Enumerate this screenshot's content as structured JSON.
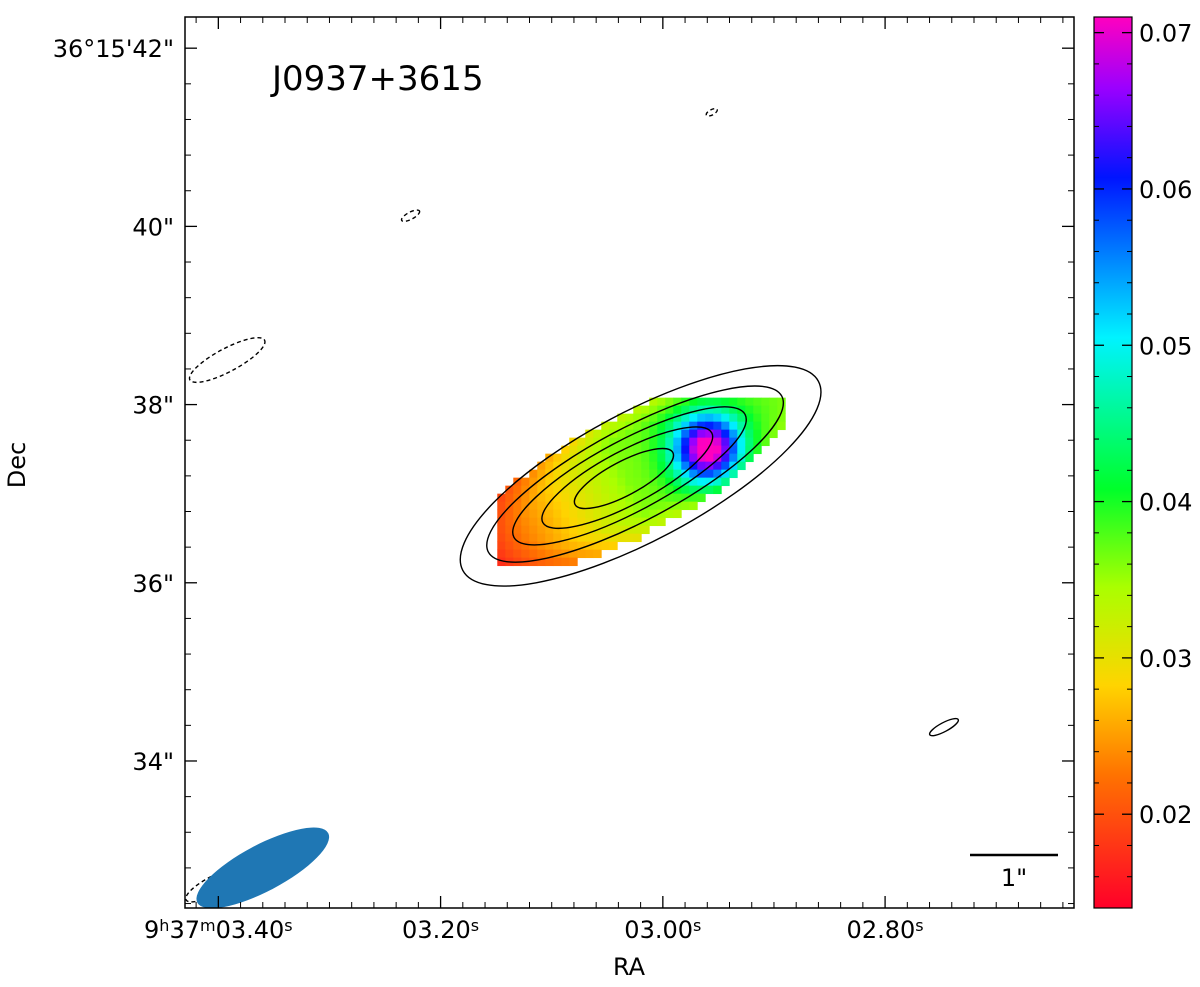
{
  "chart_data": {
    "type": "heatmap",
    "title": "J0937+3615",
    "xlabel": "RA",
    "ylabel": "Dec",
    "x_axis": {
      "lim": [
        2.63,
        3.43
      ],
      "unit": "seconds of RA after 9h37m",
      "ticks": [
        {
          "value": 3.4,
          "parts": [
            [
              "9",
              ""
            ],
            [
              "h",
              "sup"
            ],
            [
              "37",
              ""
            ],
            [
              "m",
              "sup"
            ],
            [
              "03.40",
              ""
            ],
            [
              "s",
              "sup"
            ]
          ]
        },
        {
          "value": 3.2,
          "parts": [
            [
              "03.20",
              ""
            ],
            [
              "s",
              "sup"
            ]
          ]
        },
        {
          "value": 3.0,
          "parts": [
            [
              "03.00",
              ""
            ],
            [
              "s",
              "sup"
            ]
          ]
        },
        {
          "value": 2.8,
          "parts": [
            [
              "02.80",
              ""
            ],
            [
              "s",
              "sup"
            ]
          ]
        }
      ]
    },
    "y_axis": {
      "lim": [
        32.35,
        42.35
      ],
      "unit": "arcsec after 36°15'",
      "ticks": [
        {
          "value": 42,
          "label": "36°15'42\""
        },
        {
          "value": 40,
          "label": "40\""
        },
        {
          "value": 38,
          "label": "38\""
        },
        {
          "value": 36,
          "label": "36\""
        },
        {
          "value": 34,
          "label": "34\""
        }
      ]
    },
    "colorbar": {
      "range": [
        0.014,
        0.071
      ],
      "ticks": [
        "0.02",
        "0.03",
        "0.04",
        "0.05",
        "0.06",
        "0.07"
      ],
      "colormap": "gist_rainbow_r"
    },
    "emission": {
      "peak_ra_s": 3.032,
      "peak_dec": 37.18,
      "position_angle_deg": 63,
      "peak_value_location": {
        "ra_s": 2.96,
        "dec": 37.5
      },
      "value_at_peak": 0.036,
      "value_at_sw_tip": 0.016,
      "contours": [
        {
          "ra_s": 3.02,
          "dec": 37.2,
          "semi_major_arcsec": 2.0,
          "semi_minor_arcsec": 0.72,
          "style": "solid"
        },
        {
          "ra_s": 3.025,
          "dec": 37.22,
          "semi_major_arcsec": 1.65,
          "semi_minor_arcsec": 0.52,
          "style": "solid"
        },
        {
          "ra_s": 3.03,
          "dec": 37.2,
          "semi_major_arcsec": 1.3,
          "semi_minor_arcsec": 0.4,
          "style": "solid"
        },
        {
          "ra_s": 3.032,
          "dec": 37.18,
          "semi_major_arcsec": 0.95,
          "semi_minor_arcsec": 0.3,
          "style": "solid"
        },
        {
          "ra_s": 3.035,
          "dec": 37.17,
          "semi_major_arcsec": 0.55,
          "semi_minor_arcsec": 0.19,
          "style": "solid"
        },
        {
          "ra_s": 2.747,
          "dec": 34.38,
          "semi_major_arcsec": 0.16,
          "semi_minor_arcsec": 0.05,
          "style": "solid"
        },
        {
          "ra_s": 3.392,
          "dec": 38.5,
          "semi_major_arcsec": 0.42,
          "semi_minor_arcsec": 0.13,
          "style": "dashed"
        },
        {
          "ra_s": 3.405,
          "dec": 32.6,
          "semi_major_arcsec": 0.3,
          "semi_minor_arcsec": 0.1,
          "style": "dashed"
        },
        {
          "ra_s": 3.227,
          "dec": 40.12,
          "semi_major_arcsec": 0.1,
          "semi_minor_arcsec": 0.04,
          "style": "dashed"
        },
        {
          "ra_s": 2.956,
          "dec": 41.28,
          "semi_major_arcsec": 0.06,
          "semi_minor_arcsec": 0.03,
          "style": "dashed"
        }
      ]
    },
    "beam": {
      "ra_s": 3.36,
      "dec": 32.8,
      "major_arcsec": 1.6,
      "minor_arcsec": 0.52,
      "position_angle_deg": 62,
      "color": "#1f77b4"
    },
    "scale_bar": {
      "label": "1\"",
      "length_arcsec": 1
    }
  }
}
